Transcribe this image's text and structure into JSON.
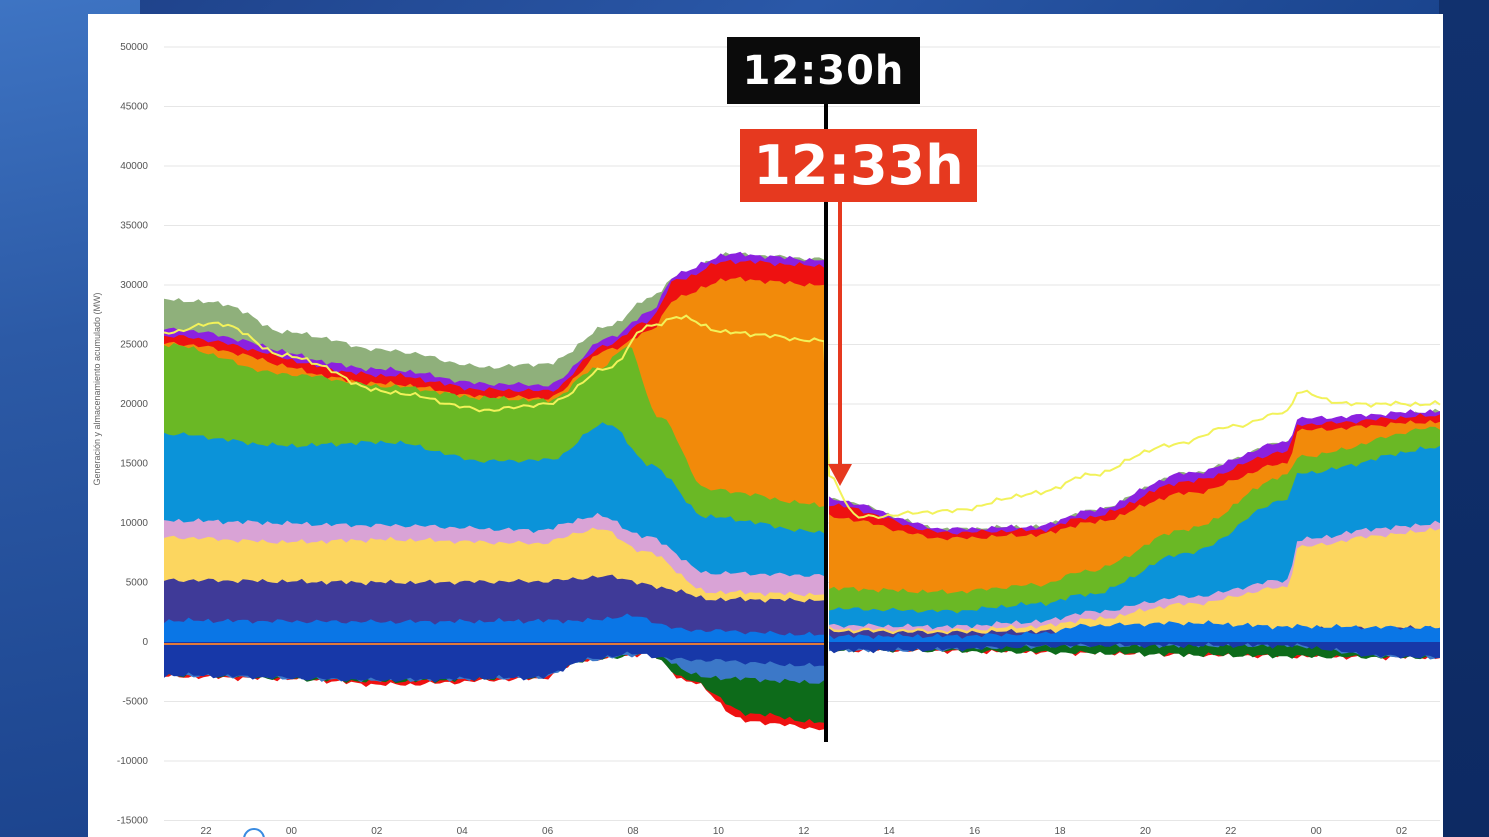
{
  "chart_data": {
    "type": "area",
    "ylabel": "Generación y almacenamiento acumulado (MW)",
    "y_ticks": [
      50000,
      45000,
      40000,
      35000,
      30000,
      25000,
      20000,
      15000,
      10000,
      5000,
      0,
      -5000,
      -10000,
      -15000
    ],
    "ylim": [
      -15000,
      50000
    ],
    "x_ticks": [
      "22",
      "00",
      "02",
      "04",
      "06",
      "08",
      "10",
      "12",
      "14",
      "16",
      "18",
      "20",
      "22",
      "00",
      "02"
    ],
    "annotations": {
      "time_reported": "12:30h",
      "time_event": "12:33h"
    },
    "series_colors": {
      "baseline_blue": "#0a76e6",
      "indigo": "#3f3a98",
      "yellow": "#fcd65f",
      "pink": "#d9a3d6",
      "cyan_blue": "#0b93d9",
      "green": "#6ab825",
      "orange": "#f28a0a",
      "red": "#ee1111",
      "purple": "#8b21e0",
      "sage": "#8fb07b",
      "demand_line": "#f2f25a",
      "navy_neg": "#1738a8",
      "steel_neg": "#3c78c8",
      "dark_green_neg": "#0d6b1a",
      "marker_black": "#000000",
      "marker_red": "#e6391f"
    }
  }
}
